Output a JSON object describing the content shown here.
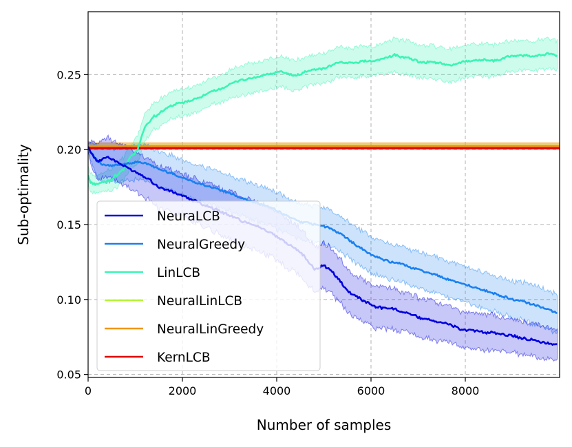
{
  "chart_data": {
    "type": "line",
    "title": "",
    "xlabel": "Number of samples",
    "ylabel": "Sub-optimality",
    "xlim": [
      0,
      10000
    ],
    "ylim": [
      0.048,
      0.292
    ],
    "xticks": [
      0,
      2000,
      4000,
      6000,
      8000
    ],
    "xtick_labels": [
      "0",
      "2000",
      "4000",
      "6000",
      "8000"
    ],
    "yticks": [
      0.05,
      0.1,
      0.15,
      0.2,
      0.25
    ],
    "ytick_labels": [
      "0.05",
      "0.10",
      "0.15",
      "0.20",
      "0.25"
    ],
    "grid": true,
    "legend_position": "lower-left",
    "series": [
      {
        "name": "NeuraLCB",
        "color": "#0000dd",
        "x": [
          0,
          100,
          200,
          300,
          400,
          500,
          700,
          900,
          1100,
          1300,
          1500,
          1800,
          2100,
          2400,
          2700,
          3000,
          3300,
          3600,
          3900,
          4200,
          4500,
          4800,
          5000,
          5200,
          5500,
          5800,
          6100,
          6400,
          6700,
          7000,
          7300,
          7600,
          7900,
          8200,
          8500,
          8800,
          9100,
          9400,
          9700,
          9950
        ],
        "values": [
          0.202,
          0.196,
          0.192,
          0.194,
          0.195,
          0.194,
          0.19,
          0.187,
          0.184,
          0.18,
          0.175,
          0.172,
          0.168,
          0.164,
          0.16,
          0.156,
          0.152,
          0.149,
          0.144,
          0.138,
          0.132,
          0.12,
          0.123,
          0.118,
          0.106,
          0.1,
          0.095,
          0.094,
          0.092,
          0.088,
          0.086,
          0.084,
          0.08,
          0.079,
          0.078,
          0.077,
          0.075,
          0.073,
          0.071,
          0.07
        ],
        "band_halfwidth": [
          0.003,
          0.01,
          0.012,
          0.012,
          0.013,
          0.013,
          0.013,
          0.013,
          0.013,
          0.014,
          0.014,
          0.014,
          0.014,
          0.015,
          0.015,
          0.016,
          0.016,
          0.016,
          0.016,
          0.016,
          0.016,
          0.015,
          0.015,
          0.015,
          0.014,
          0.014,
          0.014,
          0.014,
          0.013,
          0.013,
          0.013,
          0.012,
          0.012,
          0.012,
          0.012,
          0.011,
          0.011,
          0.011,
          0.011,
          0.01
        ]
      },
      {
        "name": "NeuralGreedy",
        "color": "#1a80f0",
        "x": [
          0,
          100,
          200,
          300,
          500,
          700,
          900,
          1100,
          1300,
          1500,
          1800,
          2100,
          2400,
          2700,
          3000,
          3300,
          3600,
          3900,
          4200,
          4500,
          4800,
          5100,
          5400,
          5700,
          6000,
          6300,
          6600,
          6900,
          7200,
          7500,
          7800,
          8100,
          8400,
          8700,
          9000,
          9300,
          9600,
          9950
        ],
        "values": [
          0.201,
          0.197,
          0.192,
          0.19,
          0.189,
          0.19,
          0.191,
          0.192,
          0.19,
          0.187,
          0.184,
          0.18,
          0.177,
          0.174,
          0.171,
          0.167,
          0.164,
          0.161,
          0.156,
          0.152,
          0.15,
          0.148,
          0.143,
          0.136,
          0.13,
          0.126,
          0.124,
          0.121,
          0.118,
          0.115,
          0.112,
          0.109,
          0.106,
          0.103,
          0.1,
          0.098,
          0.095,
          0.091
        ],
        "band_halfwidth": [
          0.003,
          0.008,
          0.01,
          0.011,
          0.011,
          0.011,
          0.011,
          0.012,
          0.012,
          0.012,
          0.012,
          0.012,
          0.012,
          0.012,
          0.012,
          0.012,
          0.012,
          0.012,
          0.012,
          0.012,
          0.012,
          0.012,
          0.012,
          0.012,
          0.012,
          0.012,
          0.012,
          0.012,
          0.012,
          0.012,
          0.012,
          0.012,
          0.012,
          0.012,
          0.012,
          0.013,
          0.013,
          0.013
        ]
      },
      {
        "name": "LinLCB",
        "color": "#3af5b4",
        "x": [
          0,
          50,
          150,
          300,
          450,
          600,
          750,
          900,
          1050,
          1200,
          1400,
          1600,
          1800,
          2000,
          2300,
          2600,
          2900,
          3200,
          3500,
          3800,
          4100,
          4400,
          4700,
          5000,
          5300,
          5600,
          5900,
          6200,
          6500,
          6800,
          7100,
          7400,
          7700,
          8000,
          8300,
          8600,
          8900,
          9200,
          9500,
          9750,
          9950
        ],
        "values": [
          0.183,
          0.178,
          0.177,
          0.178,
          0.179,
          0.183,
          0.187,
          0.195,
          0.2,
          0.215,
          0.222,
          0.226,
          0.23,
          0.231,
          0.234,
          0.238,
          0.242,
          0.246,
          0.248,
          0.25,
          0.252,
          0.249,
          0.253,
          0.254,
          0.258,
          0.258,
          0.259,
          0.26,
          0.263,
          0.261,
          0.258,
          0.258,
          0.256,
          0.259,
          0.26,
          0.259,
          0.262,
          0.263,
          0.262,
          0.264,
          0.263
        ],
        "band_halfwidth": [
          0.006,
          0.006,
          0.006,
          0.006,
          0.007,
          0.008,
          0.008,
          0.008,
          0.009,
          0.009,
          0.009,
          0.009,
          0.009,
          0.009,
          0.009,
          0.009,
          0.009,
          0.01,
          0.01,
          0.01,
          0.01,
          0.01,
          0.01,
          0.01,
          0.01,
          0.01,
          0.01,
          0.01,
          0.011,
          0.011,
          0.011,
          0.011,
          0.011,
          0.011,
          0.011,
          0.011,
          0.01,
          0.01,
          0.01,
          0.01,
          0.01
        ]
      },
      {
        "name": "NeuralLinLCB",
        "color": "#b4f538",
        "x": [
          0,
          10000
        ],
        "values": [
          0.2025,
          0.2025
        ],
        "band_halfwidth": [
          0.0015,
          0.0015
        ]
      },
      {
        "name": "NeuralLinGreedy",
        "color": "#f0960f",
        "x": [
          0,
          10000
        ],
        "values": [
          0.2025,
          0.2025
        ],
        "band_halfwidth": [
          0.0022,
          0.0022
        ]
      },
      {
        "name": "KernLCB",
        "color": "#e00000",
        "x": [
          0,
          10000
        ],
        "values": [
          0.201,
          0.201
        ],
        "band_halfwidth": [
          0.0008,
          0.0008
        ]
      }
    ]
  }
}
